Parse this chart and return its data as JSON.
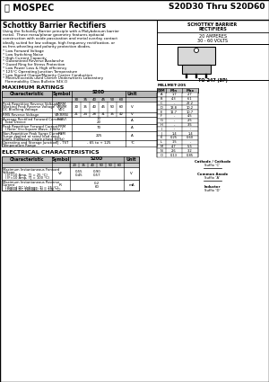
{
  "title_line": "S20D30 Thru S20D60",
  "logo_text": "MOSPEC",
  "main_heading": "Schottky Barrier Rectifiers",
  "description": "Using the Schottky Barrier principle with a Molybdenum barrier\nmetal.  These mesa/planar geometry features epitaxial\nconstruction with oxide passivation and metal overlay contact\nideally suited for low voltage, high frequency rectification, or\nas free-wheeling and polarity protection diodes.",
  "features": [
    "* Low Forward Voltage",
    "* Low Switching Noise",
    "* High Current Capacity",
    "* Guaranteed Reverse Avalanche",
    "* Guard Ring for Stress Protection",
    "* Low Power Loss & High efficiency",
    "* 125°C Operating Junction Temperature",
    "* Low Stored Charge/Majority Carrier Conduction",
    "* Meets/Exceeds used Carrier Underwriters Laboratory",
    "  Flammability Class Bulletin 94V-O"
  ],
  "box_title1": "SCHOTTKY BARRIER",
  "box_title2": "RECTIFIERS",
  "box_amps": "20 AMPERES",
  "box_volts": "30 - 60 VOLTS",
  "package": "TO-247 (3P)",
  "max_ratings_title": "MAXIMUM RATINGS",
  "max_ratings_subheaders": [
    "30",
    "35",
    "40",
    "45",
    "50",
    "60"
  ],
  "millmet_table_title": "MILLMET-205",
  "millmet_rows": [
    [
      "A",
      "1.7",
      "2.7"
    ],
    [
      "B",
      "4.3",
      "6.1"
    ],
    [
      "C",
      "-",
      "22.2"
    ],
    [
      "D",
      "13.8",
      "10.2"
    ],
    [
      "E",
      "11.7",
      "10.7"
    ],
    [
      "F",
      "-",
      "4.5"
    ],
    [
      "G",
      "-",
      "2.5"
    ],
    [
      "H",
      "-",
      "3.5"
    ],
    [
      "I",
      "-",
      "-"
    ],
    [
      "J",
      "1.4",
      "1.4"
    ],
    [
      "K",
      "0.25",
      "0.60"
    ],
    [
      "L",
      ".15",
      "-"
    ],
    [
      "M",
      "4.7",
      "5.5"
    ],
    [
      "N",
      "2.6",
      "3.2"
    ],
    [
      "O",
      "0.13",
      "0.85"
    ]
  ],
  "elec_char_title": "ELECTRICAL CHARACTERISTICS",
  "elec_subheaders": [
    "20",
    "35",
    "40",
    "50",
    "50",
    "60"
  ],
  "bg_color": "#ffffff"
}
